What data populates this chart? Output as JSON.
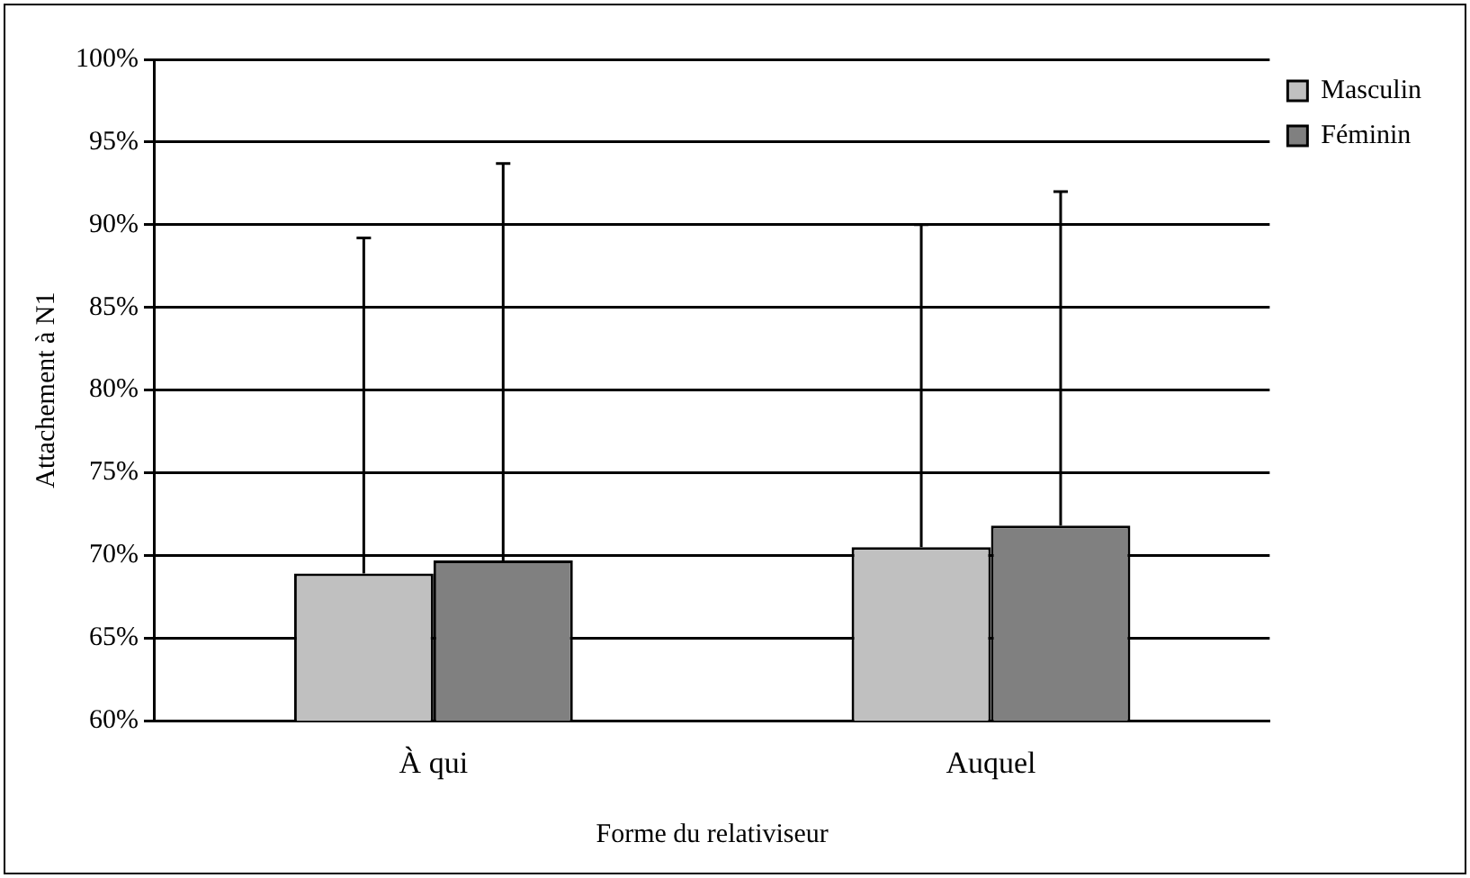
{
  "chart_data": {
    "type": "bar",
    "xlabel": "Forme du relativiseur",
    "ylabel": "Attachement à N1",
    "categories": [
      "À qui",
      "Auquel"
    ],
    "series": [
      {
        "name": "Masculin",
        "color": "#c0c0c0",
        "values": [
          68.9,
          70.5
        ],
        "errors": [
          [
            68.9,
            89.2
          ],
          [
            70.5,
            90.0
          ]
        ]
      },
      {
        "name": "Féminin",
        "color": "#808080",
        "values": [
          69.7,
          71.8
        ],
        "errors": [
          [
            69.7,
            93.7
          ],
          [
            71.8,
            92.0
          ]
        ]
      }
    ],
    "ylim": [
      60,
      100
    ],
    "yticks": [
      {
        "value": 60,
        "label": "60%"
      },
      {
        "value": 65,
        "label": "65%"
      },
      {
        "value": 70,
        "label": "70%"
      },
      {
        "value": 75,
        "label": "75%"
      },
      {
        "value": 80,
        "label": "80%"
      },
      {
        "value": 85,
        "label": "85%"
      },
      {
        "value": 90,
        "label": "90%"
      },
      {
        "value": 95,
        "label": "95%"
      },
      {
        "value": 100,
        "label": "100%"
      }
    ],
    "grid": "y",
    "legend": "top right"
  }
}
